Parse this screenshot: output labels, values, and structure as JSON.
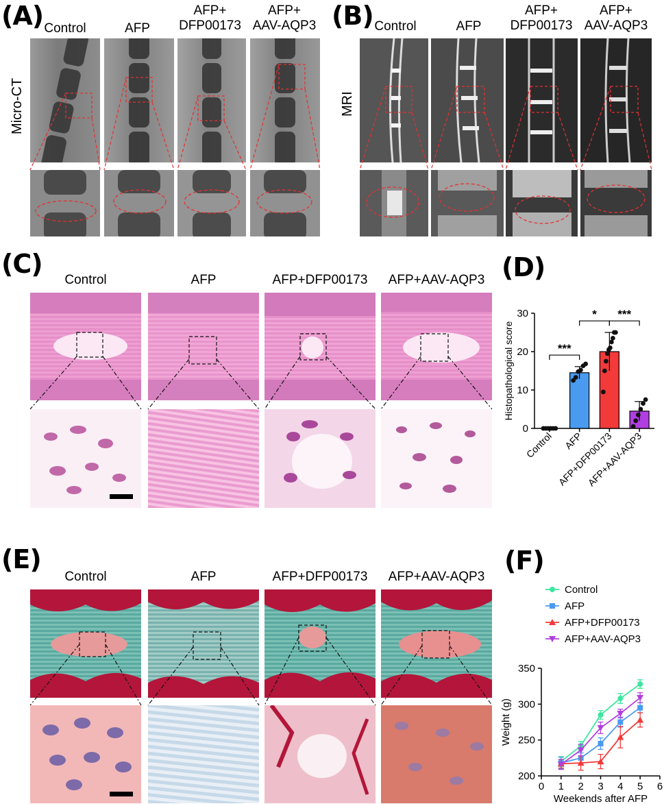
{
  "panels": {
    "A": {
      "letter": "(A)",
      "side_label": "Micro-CT",
      "columns": [
        [
          "Control"
        ],
        [
          "AFP"
        ],
        [
          "AFP+",
          "DFP00173"
        ],
        [
          "AFP+",
          "AAV-AQP3"
        ]
      ]
    },
    "B": {
      "letter": "(B)",
      "side_label": "MRI",
      "columns": [
        [
          "Control"
        ],
        [
          "AFP"
        ],
        [
          "AFP+",
          "DFP00173"
        ],
        [
          "AFP+",
          "AAV-AQP3"
        ]
      ]
    },
    "C": {
      "letter": "(C)",
      "columns": [
        "Control",
        "AFP",
        "AFP+DFP00173",
        "AFP+AAV-AQP3"
      ]
    },
    "D": {
      "letter": "(D)"
    },
    "E": {
      "letter": "(E)",
      "columns": [
        "Control",
        "AFP",
        "AFP+DFP00173",
        "AFP+AAV-AQP3"
      ]
    },
    "F": {
      "letter": "(F)"
    }
  },
  "colors": {
    "control": "#3ee6a0",
    "afp": "#4a9bf0",
    "afp_dfp": "#f23a3a",
    "afp_aav": "#b13fe0",
    "annotation_red": "#e53030"
  },
  "chart_data": [
    {
      "panel": "D",
      "type": "bar",
      "categories": [
        "Control",
        "AFP",
        "AFP+DFP00173",
        "AFP+AAV-AQP3"
      ],
      "values": [
        0,
        14.5,
        20,
        4.5
      ],
      "errors": [
        0,
        1.6,
        5,
        2.5
      ],
      "points": [
        [
          0,
          0,
          0,
          0,
          0,
          0
        ],
        [
          12.5,
          13.3,
          14.8,
          15.2,
          16.3,
          16.8
        ],
        [
          9.5,
          15,
          17.5,
          19.5,
          20.5,
          21,
          22.5,
          23.5,
          25,
          25
        ],
        [
          0.5,
          2,
          3.5,
          5,
          6.5,
          7.5
        ]
      ],
      "ylabel": "Histopathological score",
      "xlabel": "",
      "ylim": [
        0,
        30
      ],
      "yticks": [
        0,
        10,
        20,
        30
      ],
      "significance": [
        {
          "from": "Control",
          "to": "AFP",
          "label": "***"
        },
        {
          "from": "AFP",
          "to": "AFP+DFP00173",
          "label": "*"
        },
        {
          "from": "AFP+DFP00173",
          "to": "AFP+AAV-AQP3",
          "label": "***"
        }
      ]
    },
    {
      "panel": "F",
      "type": "line",
      "x": [
        1,
        2,
        3,
        4,
        5
      ],
      "series": [
        {
          "name": "Control",
          "values": [
            220,
            242,
            285,
            308,
            328
          ],
          "errors": [
            7,
            6,
            6,
            7,
            6
          ]
        },
        {
          "name": "AFP",
          "values": [
            218,
            225,
            245,
            275,
            295
          ],
          "errors": [
            8,
            7,
            8,
            7,
            7
          ]
        },
        {
          "name": "AFP+DFP00173",
          "values": [
            217,
            218,
            220,
            254,
            278
          ],
          "errors": [
            6,
            10,
            10,
            15,
            10
          ]
        },
        {
          "name": "AFP+AAV-AQP3",
          "values": [
            216,
            236,
            267,
            287,
            309
          ],
          "errors": [
            7,
            8,
            8,
            6,
            7
          ]
        }
      ],
      "xlabel": "Weekends after AFP",
      "ylabel": "Weight (g)",
      "xlim": [
        0,
        6
      ],
      "ylim": [
        200,
        350
      ],
      "xticks": [
        0,
        1,
        2,
        3,
        4,
        5,
        6
      ],
      "yticks": [
        200,
        250,
        300,
        350
      ],
      "legend_position": "top-left"
    }
  ]
}
